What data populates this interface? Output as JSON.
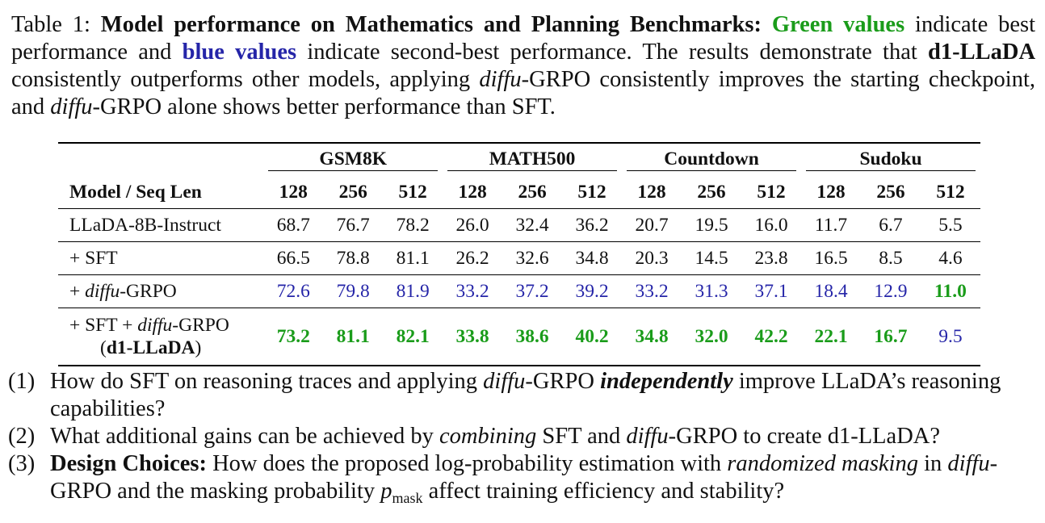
{
  "caption": {
    "prefix": "Table 1:",
    "title": "Model performance on Mathematics and Planning Benchmarks:",
    "green_label": "Green values",
    "t1": "indicate best performance and",
    "blue_label": "blue values",
    "t2": "indicate second-best performance. The results demonstrate that",
    "model_bold": "d1-LLaDA",
    "t3": "consistently outperforms other models, applying",
    "diffu": "diffu",
    "t4": "-GRPO consistently improves the starting checkpoint, and",
    "t5": "-GRPO alone shows better performance than SFT."
  },
  "colors": {
    "green": "#1a9c1a",
    "blue": "#2525a8"
  },
  "table": {
    "groups": [
      "GSM8K",
      "MATH500",
      "Countdown",
      "Sudoku"
    ],
    "header_model": "Model / Seq Len",
    "seq_lens": [
      "128",
      "256",
      "512",
      "128",
      "256",
      "512",
      "128",
      "256",
      "512",
      "128",
      "256",
      "512"
    ],
    "rows": [
      {
        "name": "LLaDA-8B-Instruct",
        "values": [
          "68.7",
          "76.7",
          "78.2",
          "26.0",
          "32.4",
          "36.2",
          "20.7",
          "19.5",
          "16.0",
          "11.7",
          "6.7",
          "5.5"
        ],
        "styles": [
          "",
          "",
          "",
          "",
          "",
          "",
          "",
          "",
          "",
          "",
          "",
          ""
        ]
      },
      {
        "name": "+ SFT",
        "values": [
          "66.5",
          "78.8",
          "81.1",
          "26.2",
          "32.6",
          "34.8",
          "20.3",
          "14.5",
          "23.8",
          "16.5",
          "8.5",
          "4.6"
        ],
        "styles": [
          "",
          "",
          "",
          "",
          "",
          "",
          "",
          "",
          "",
          "",
          "",
          ""
        ]
      },
      {
        "name_prefix": "+ ",
        "name_italic": "diffu",
        "name_suffix": "-GRPO",
        "values": [
          "72.6",
          "79.8",
          "81.9",
          "33.2",
          "37.2",
          "39.2",
          "33.2",
          "31.3",
          "37.1",
          "18.4",
          "12.9",
          "11.0"
        ],
        "styles": [
          "blue",
          "blue",
          "blue",
          "blue",
          "blue",
          "blue",
          "blue",
          "blue",
          "blue",
          "blue",
          "blue",
          "green"
        ]
      },
      {
        "name_line1_prefix": "+ SFT + ",
        "name_italic": "diffu",
        "name_line1_suffix": "-GRPO",
        "name_line2_open": "(",
        "name_line2_bold": "d1-LLaDA",
        "name_line2_close": ")",
        "values": [
          "73.2",
          "81.1",
          "82.1",
          "33.8",
          "38.6",
          "40.2",
          "34.8",
          "32.0",
          "42.2",
          "22.1",
          "16.7",
          "9.5"
        ],
        "styles": [
          "green",
          "green",
          "green",
          "green",
          "green",
          "green",
          "green",
          "green",
          "green",
          "green",
          "green",
          "blue"
        ]
      }
    ]
  },
  "questions": [
    {
      "num": "(1)",
      "a": "How do SFT on reasoning traces and applying",
      "italic": "diffu",
      "b": "-GRPO",
      "bolditalic": "independently",
      "c": "improve LLaDA’s reasoning capabilities?"
    },
    {
      "num": "(2)",
      "a": "What additional gains can be achieved by",
      "italic1": "combining",
      "b": "SFT and",
      "italic2": "diffu",
      "c": "-GRPO to create d1-LLaDA?"
    },
    {
      "num": "(3)",
      "bold": "Design Choices:",
      "a": "How does the proposed log-probability estimation with",
      "italic1": "randomized masking",
      "b": "in",
      "italic2": "diffu",
      "c": "-GRPO and the masking probability",
      "p": "p",
      "p_sub": "mask",
      "d": "affect training efficiency and stability?"
    }
  ]
}
